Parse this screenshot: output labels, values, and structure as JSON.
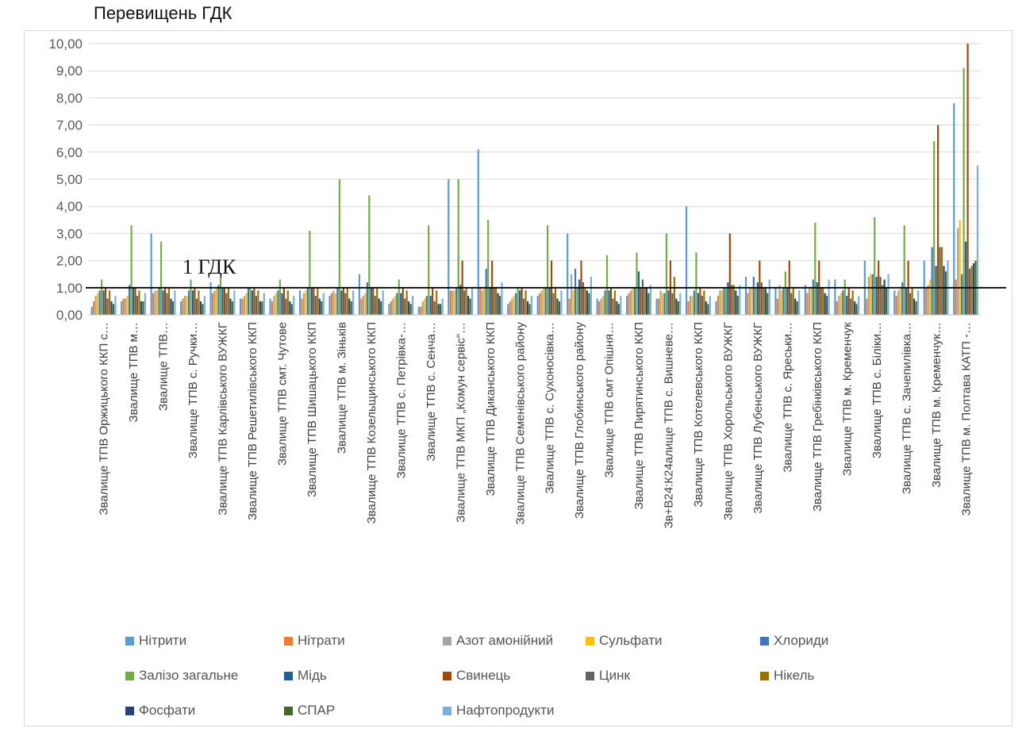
{
  "chart_data": {
    "type": "bar",
    "ylabel": "Перевищень ГДК",
    "ylim": [
      0,
      10
    ],
    "yticks": [
      "0,00",
      "1,00",
      "2,00",
      "3,00",
      "4,00",
      "5,00",
      "6,00",
      "7,00",
      "8,00",
      "9,00",
      "10,00"
    ],
    "reference_line": {
      "value": 1,
      "label": "1 ГДК"
    },
    "legend_position": "bottom",
    "categories": [
      "Звалище ТПВ Оржицького ККП с…",
      "Звалище ТПВ м…",
      "Звалище ТПВ…",
      "Звалище ТПВ с. Ручки…",
      "Звалище ТПВ Карлівського ВУЖКГ",
      "Звалище ТПВ Решетилівського ККП",
      "Звалище ТПВ смт. Чутове",
      "Звалище ТПВ Шишацького ККП",
      "Звалище ТПВ м. Зіньків",
      "Звалище ТПВ Козельщинського ККП",
      "Звалище ТПВ с. Петрівка-…",
      "Звалище ТПВ с. Сенча…",
      "Звалище ТПВ МКП „Комун сервіс“…",
      "Звалище ТПВ Диканського ККП",
      "Звалище ТПВ Семенівського району",
      "Звалище ТПВ с. Сухоносівка…",
      "Звалище ТПВ Глобинського району",
      "Звалище ТПВ смт Опішня…",
      "Звалище ТПВ Пирятинського ККП",
      "Зв+В24:К24алище ТПВ с. Вишневе…",
      "Звалище ТПВ Котелевського ККП",
      "Звалище ТПВ Хорольського ВУЖКГ",
      "Звалище ТПВ Лубенського ВУЖКГ",
      "Звалище ТПВ с. Яреськи…",
      "Звалище ТПВ Гребінківського ККП",
      "Звалище ТПВ м. Кременчук",
      "Звалище ТПВ с. Біліки…",
      "Звалище ТПВ с. Зачепилівка…",
      "Звалище ТПВ м. Кременчук…",
      "Звалище ТПВ м. Полтава КАТП -…"
    ],
    "series": [
      {
        "name": "Нітрити",
        "color": "#5b9bd5",
        "values": [
          0.3,
          0.5,
          3.0,
          0.5,
          1.2,
          0.6,
          0.6,
          0.9,
          0.7,
          1.5,
          0.4,
          0.3,
          5.0,
          6.1,
          0.4,
          0.7,
          3.0,
          0.6,
          0.7,
          0.6,
          4.0,
          0.5,
          1.4,
          1.0,
          1.1,
          1.3,
          2.0,
          0.9,
          2.0,
          7.8
        ]
      },
      {
        "name": "Нітрати",
        "color": "#ed7d31",
        "values": [
          0.5,
          0.6,
          0.8,
          0.6,
          0.8,
          0.6,
          0.5,
          0.6,
          0.8,
          0.6,
          0.5,
          0.3,
          0.9,
          1.0,
          0.5,
          0.8,
          0.6,
          0.5,
          0.8,
          0.6,
          0.5,
          0.7,
          0.8,
          0.6,
          0.8,
          0.5,
          0.6,
          0.7,
          1.0,
          1.3
        ]
      },
      {
        "name": "Азот амонійний",
        "color": "#a5a5a5",
        "values": [
          0.7,
          0.6,
          0.9,
          0.7,
          0.9,
          0.7,
          0.7,
          0.8,
          0.9,
          0.7,
          0.6,
          0.5,
          0.9,
          0.9,
          0.6,
          0.9,
          1.5,
          0.6,
          0.9,
          0.9,
          0.7,
          0.9,
          1.0,
          1.1,
          1.0,
          0.7,
          1.4,
          0.9,
          1.1,
          3.2
        ]
      },
      {
        "name": "Сульфати",
        "color": "#ffc000",
        "values": [
          0.8,
          0.7,
          0.9,
          0.7,
          1.0,
          0.8,
          0.8,
          0.9,
          0.8,
          0.8,
          0.7,
          0.6,
          0.9,
          1.0,
          0.7,
          1.0,
          0.9,
          0.7,
          1.0,
          0.8,
          0.7,
          0.9,
          1.0,
          0.9,
          1.0,
          0.8,
          1.5,
          1.0,
          1.3,
          3.5
        ]
      },
      {
        "name": "Хлориди",
        "color": "#4472c4",
        "values": [
          0.9,
          1.1,
          1.0,
          0.9,
          1.1,
          1.0,
          0.9,
          1.0,
          1.0,
          1.2,
          0.8,
          0.7,
          1.0,
          1.7,
          0.8,
          1.0,
          1.7,
          0.9,
          1.0,
          0.8,
          0.9,
          1.0,
          1.4,
          1.0,
          1.3,
          0.9,
          1.5,
          1.2,
          2.5,
          1.5
        ]
      },
      {
        "name": "Залізо загальне",
        "color": "#70ad47",
        "values": [
          1.3,
          3.3,
          2.7,
          1.3,
          1.4,
          1.0,
          1.3,
          3.1,
          5.0,
          4.4,
          1.3,
          3.3,
          5.0,
          3.5,
          1.0,
          3.3,
          1.0,
          2.2,
          2.3,
          3.0,
          2.3,
          1.0,
          1.0,
          1.6,
          3.4,
          1.3,
          3.6,
          3.3,
          6.4,
          9.1
        ]
      },
      {
        "name": "Мідь",
        "color": "#255e91",
        "values": [
          0.9,
          1.0,
          0.9,
          0.9,
          1.0,
          0.9,
          0.8,
          1.0,
          0.9,
          1.0,
          0.8,
          0.7,
          1.1,
          1.0,
          0.9,
          1.0,
          1.3,
          0.9,
          1.6,
          0.9,
          0.8,
          1.2,
          1.2,
          1.0,
          1.2,
          0.7,
          1.4,
          1.0,
          1.8,
          2.7
        ]
      },
      {
        "name": "Свинець",
        "color": "#9e480e",
        "values": [
          1.0,
          1.0,
          1.0,
          1.0,
          1.0,
          1.0,
          1.0,
          1.0,
          1.0,
          1.0,
          1.0,
          1.0,
          2.0,
          2.0,
          1.0,
          2.0,
          2.0,
          1.0,
          1.0,
          2.0,
          1.0,
          3.0,
          2.0,
          2.0,
          2.0,
          1.0,
          2.0,
          2.0,
          7.0,
          10.0
        ]
      },
      {
        "name": "Цинк",
        "color": "#636363",
        "values": [
          0.6,
          0.7,
          0.8,
          0.6,
          0.8,
          0.7,
          0.6,
          0.7,
          0.8,
          0.7,
          0.6,
          0.5,
          0.9,
          1.0,
          0.6,
          0.8,
          1.2,
          0.6,
          1.3,
          0.8,
          0.7,
          1.1,
          1.2,
          0.8,
          1.0,
          0.6,
          1.4,
          0.8,
          2.5,
          1.7
        ]
      },
      {
        "name": "Нікель",
        "color": "#997300",
        "values": [
          0.9,
          0.9,
          1.0,
          0.9,
          1.0,
          0.9,
          0.9,
          1.0,
          1.0,
          1.0,
          0.9,
          0.9,
          1.0,
          1.0,
          0.9,
          1.0,
          1.0,
          0.9,
          1.0,
          1.4,
          0.9,
          1.1,
          1.0,
          1.0,
          1.0,
          0.9,
          1.1,
          1.0,
          2.5,
          1.8
        ]
      },
      {
        "name": "Фосфати",
        "color": "#264478",
        "values": [
          0.5,
          0.5,
          0.6,
          0.5,
          0.6,
          0.5,
          0.5,
          0.6,
          0.6,
          0.6,
          0.5,
          0.4,
          0.7,
          0.8,
          0.5,
          0.6,
          0.9,
          0.5,
          1.0,
          0.6,
          0.5,
          0.9,
          1.0,
          0.6,
          0.8,
          0.5,
          1.3,
          0.6,
          1.8,
          1.9
        ]
      },
      {
        "name": "СПАР",
        "color": "#43682b",
        "values": [
          0.4,
          0.5,
          0.5,
          0.4,
          0.5,
          0.5,
          0.4,
          0.5,
          0.5,
          0.5,
          0.4,
          0.4,
          0.6,
          0.7,
          0.4,
          0.5,
          0.8,
          0.4,
          0.8,
          0.5,
          0.4,
          0.7,
          0.8,
          0.5,
          0.7,
          0.4,
          1.0,
          0.5,
          1.6,
          2.0
        ]
      },
      {
        "name": "Нафтопродукти",
        "color": "#7cafdd",
        "values": [
          0.7,
          0.8,
          0.9,
          0.7,
          0.9,
          0.8,
          0.7,
          0.8,
          0.9,
          0.9,
          0.7,
          0.6,
          1.0,
          1.2,
          0.7,
          0.9,
          1.4,
          0.7,
          1.1,
          0.8,
          0.7,
          1.1,
          1.3,
          0.9,
          1.3,
          0.7,
          1.5,
          0.9,
          2.0,
          5.5
        ]
      }
    ]
  }
}
